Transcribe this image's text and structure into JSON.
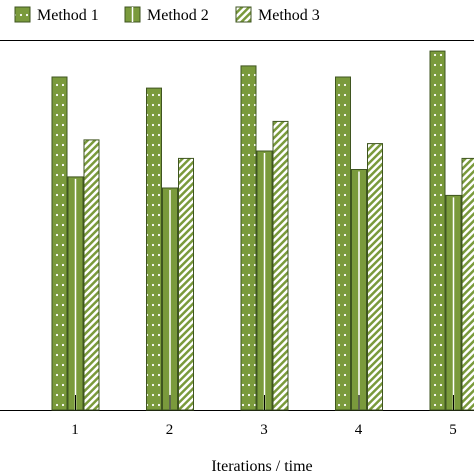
{
  "chart_data": {
    "type": "bar",
    "categories": [
      "1",
      "2",
      "3",
      "4",
      "5"
    ],
    "series": [
      {
        "name": "Method 1",
        "values": [
          0.9,
          0.87,
          0.93,
          0.9,
          0.97
        ]
      },
      {
        "name": "Method 2",
        "values": [
          0.63,
          0.6,
          0.7,
          0.65,
          0.58
        ]
      },
      {
        "name": "Method 3",
        "values": [
          0.73,
          0.68,
          0.78,
          0.72,
          0.68
        ]
      }
    ],
    "title": "",
    "xlabel": "Iterations / time",
    "ylabel": "",
    "ylim": [
      0,
      1
    ],
    "legend_position": "top",
    "colors": {
      "method1_fill": "#7a9a3c",
      "method1_dots": "#ffffff",
      "method2_fill": "#7a9a3c",
      "method2_stripe": "#ffffff",
      "method3_fill": "#ffffff",
      "method3_hatch": "#7a9a3c",
      "bar_edge": "#3f5520"
    }
  }
}
